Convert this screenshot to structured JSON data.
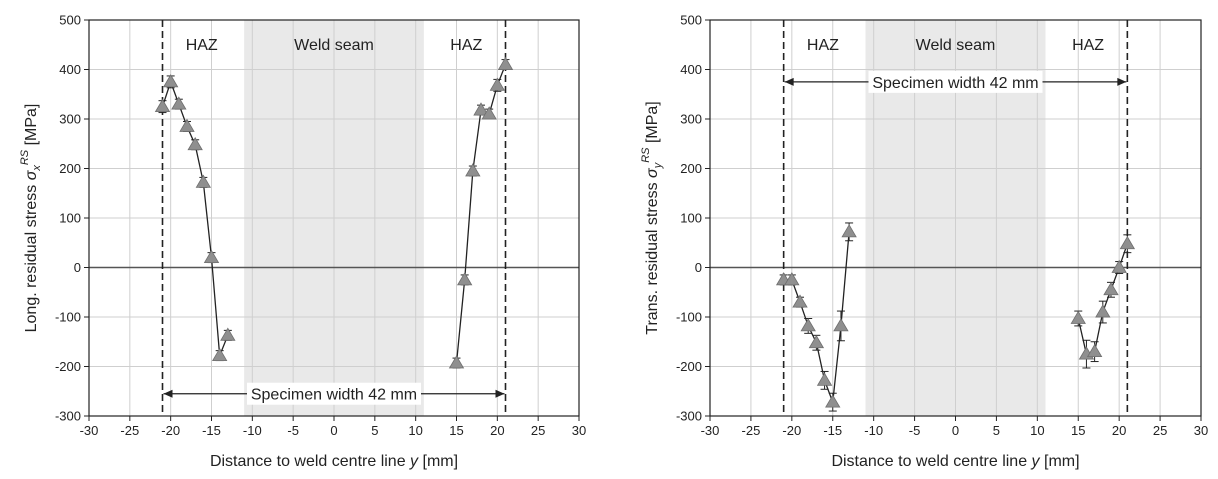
{
  "chart_data": [
    {
      "type": "scatter",
      "panel": "left",
      "xlabel_main": "Distance to weld centre line ",
      "xlabel_var": "y",
      "xlabel_unit": " [mm]",
      "ylabel_main": "Long. residual stress ",
      "ylabel_sym": "σ",
      "ylabel_sub": "x",
      "ylabel_sup": "RS",
      "ylabel_unit": " [MPa]",
      "xlim": [
        -30,
        30
      ],
      "ylim": [
        -300,
        500
      ],
      "xticks": [
        -30,
        -25,
        -20,
        -15,
        -10,
        -5,
        0,
        5,
        10,
        15,
        20,
        25,
        30
      ],
      "yticks": [
        -300,
        -200,
        -100,
        0,
        100,
        200,
        300,
        400,
        500
      ],
      "grid": true,
      "weld_seam": [
        -11,
        11
      ],
      "specimen_edges": [
        -21,
        21
      ],
      "annotations": {
        "haz_left": "HAZ",
        "weld_seam": "Weld seam",
        "haz_right": "HAZ",
        "specimen_width": "Specimen width 42 mm",
        "specimen_width_y": -255
      },
      "series": [
        {
          "x": [
            -21,
            -20,
            -19,
            -18,
            -17,
            -16,
            -15,
            -14,
            -13
          ],
          "y": [
            325,
            375,
            330,
            285,
            248,
            172,
            20,
            -178,
            -137
          ],
          "err": [
            12,
            12,
            10,
            10,
            10,
            10,
            10,
            10,
            10
          ]
        },
        {
          "x": [
            15,
            16,
            17,
            18,
            19,
            20,
            21
          ],
          "y": [
            -193,
            -25,
            195,
            318,
            310,
            368,
            410
          ],
          "err": [
            10,
            10,
            10,
            10,
            10,
            12,
            10
          ]
        }
      ]
    },
    {
      "type": "scatter",
      "panel": "right",
      "xlabel_main": "Distance to weld centre line ",
      "xlabel_var": "y",
      "xlabel_unit": " [mm]",
      "ylabel_main": "Trans. residual stress ",
      "ylabel_sym": "σ",
      "ylabel_sub": "y",
      "ylabel_sup": "RS",
      "ylabel_unit": " [MPa]",
      "xlim": [
        -30,
        30
      ],
      "ylim": [
        -300,
        500
      ],
      "xticks": [
        -30,
        -25,
        -20,
        -15,
        -10,
        -5,
        0,
        5,
        10,
        15,
        20,
        25,
        30
      ],
      "yticks": [
        -300,
        -200,
        -100,
        0,
        100,
        200,
        300,
        400,
        500
      ],
      "grid": true,
      "weld_seam": [
        -11,
        11
      ],
      "specimen_edges": [
        -21,
        21
      ],
      "annotations": {
        "haz_left": "HAZ",
        "weld_seam": "Weld seam",
        "haz_right": "HAZ",
        "specimen_width": "Specimen width 42 mm",
        "specimen_width_y": 375
      },
      "series": [
        {
          "x": [
            -21,
            -20,
            -19,
            -18,
            -17,
            -16,
            -15,
            -14,
            -13
          ],
          "y": [
            -25,
            -25,
            -70,
            -118,
            -152,
            -228,
            -272,
            -118,
            72
          ],
          "err": [
            10,
            10,
            10,
            15,
            15,
            18,
            18,
            30,
            18
          ]
        },
        {
          "x": [
            15,
            16,
            17,
            18,
            19,
            20,
            21
          ],
          "y": [
            -103,
            -175,
            -170,
            -90,
            -45,
            0,
            48
          ],
          "err": [
            15,
            28,
            20,
            22,
            15,
            12,
            18
          ]
        }
      ]
    }
  ]
}
